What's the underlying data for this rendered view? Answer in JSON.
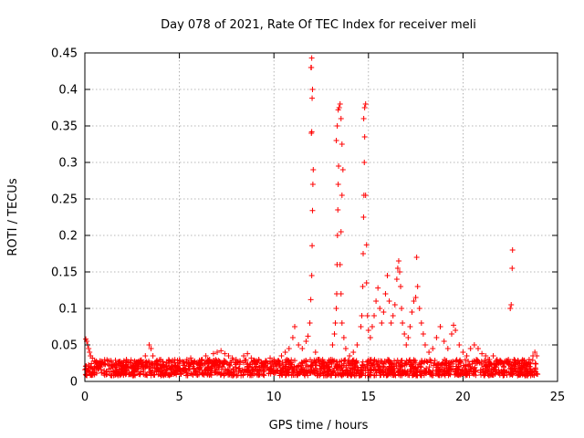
{
  "chart_data": {
    "type": "scatter",
    "title": "Day 078 of 2021, Rate Of TEC Index for receiver meli",
    "xlabel": "GPS time / hours",
    "ylabel": "ROTI / TECUs",
    "xlim": [
      0,
      25
    ],
    "ylim": [
      0,
      0.45
    ],
    "xticks": [
      0,
      5,
      10,
      15,
      20,
      25
    ],
    "xtick_labels": [
      "0",
      "5",
      "10",
      "15",
      "20",
      "25"
    ],
    "yticks": [
      0,
      0.05,
      0.1,
      0.15,
      0.2,
      0.25,
      0.3,
      0.35,
      0.4,
      0.45
    ],
    "ytick_labels": [
      "0",
      "0.05",
      "0.1",
      "0.15",
      "0.2",
      "0.25",
      "0.3",
      "0.35",
      "0.4",
      "0.45"
    ],
    "grid": true,
    "marker": "+",
    "color": "#ff0000",
    "series": [
      {
        "name": "ROTI",
        "points": [
          [
            0.05,
            0.058
          ],
          [
            0.1,
            0.055
          ],
          [
            0.15,
            0.05
          ],
          [
            0.2,
            0.045
          ],
          [
            0.25,
            0.04
          ],
          [
            0.3,
            0.035
          ],
          [
            0.4,
            0.032
          ],
          [
            0.5,
            0.028
          ],
          [
            0.6,
            0.025
          ],
          [
            0.8,
            0.022
          ],
          [
            1.0,
            0.024
          ],
          [
            1.2,
            0.028
          ],
          [
            1.4,
            0.022
          ],
          [
            1.6,
            0.02
          ],
          [
            1.8,
            0.025
          ],
          [
            2.0,
            0.022
          ],
          [
            2.2,
            0.03
          ],
          [
            2.4,
            0.025
          ],
          [
            2.6,
            0.022
          ],
          [
            2.8,
            0.02
          ],
          [
            3.0,
            0.025
          ],
          [
            3.2,
            0.035
          ],
          [
            3.4,
            0.05
          ],
          [
            3.5,
            0.045
          ],
          [
            3.6,
            0.035
          ],
          [
            3.8,
            0.028
          ],
          [
            4.0,
            0.022
          ],
          [
            4.2,
            0.02
          ],
          [
            4.4,
            0.025
          ],
          [
            4.6,
            0.02
          ],
          [
            4.8,
            0.022
          ],
          [
            5.0,
            0.018
          ],
          [
            5.2,
            0.022
          ],
          [
            5.4,
            0.03
          ],
          [
            5.6,
            0.032
          ],
          [
            5.8,
            0.028
          ],
          [
            6.0,
            0.025
          ],
          [
            6.2,
            0.03
          ],
          [
            6.4,
            0.035
          ],
          [
            6.6,
            0.03
          ],
          [
            6.8,
            0.038
          ],
          [
            7.0,
            0.04
          ],
          [
            7.2,
            0.042
          ],
          [
            7.4,
            0.038
          ],
          [
            7.6,
            0.035
          ],
          [
            7.8,
            0.032
          ],
          [
            8.0,
            0.03
          ],
          [
            8.2,
            0.028
          ],
          [
            8.4,
            0.035
          ],
          [
            8.6,
            0.038
          ],
          [
            8.8,
            0.032
          ],
          [
            9.0,
            0.028
          ],
          [
            9.2,
            0.03
          ],
          [
            9.4,
            0.025
          ],
          [
            9.6,
            0.028
          ],
          [
            9.8,
            0.032
          ],
          [
            10.0,
            0.03
          ],
          [
            10.2,
            0.028
          ],
          [
            10.4,
            0.035
          ],
          [
            10.6,
            0.04
          ],
          [
            10.8,
            0.045
          ],
          [
            11.0,
            0.06
          ],
          [
            11.1,
            0.075
          ],
          [
            11.3,
            0.05
          ],
          [
            11.5,
            0.045
          ],
          [
            11.7,
            0.055
          ],
          [
            11.8,
            0.062
          ],
          [
            11.9,
            0.08
          ],
          [
            11.95,
            0.112
          ],
          [
            12.0,
            0.145
          ],
          [
            12.02,
            0.186
          ],
          [
            12.04,
            0.234
          ],
          [
            12.06,
            0.27
          ],
          [
            12.08,
            0.29
          ],
          [
            11.98,
            0.34
          ],
          [
            12.0,
            0.342
          ],
          [
            12.02,
            0.388
          ],
          [
            12.04,
            0.4
          ],
          [
            11.96,
            0.43
          ],
          [
            11.98,
            0.43
          ],
          [
            12.0,
            0.443
          ],
          [
            12.2,
            0.04
          ],
          [
            12.4,
            0.03
          ],
          [
            12.6,
            0.025
          ],
          [
            12.8,
            0.022
          ],
          [
            13.0,
            0.03
          ],
          [
            13.1,
            0.05
          ],
          [
            13.2,
            0.065
          ],
          [
            13.25,
            0.08
          ],
          [
            13.3,
            0.1
          ],
          [
            13.32,
            0.12
          ],
          [
            13.34,
            0.16
          ],
          [
            13.36,
            0.2
          ],
          [
            13.38,
            0.235
          ],
          [
            13.4,
            0.27
          ],
          [
            13.42,
            0.295
          ],
          [
            13.3,
            0.33
          ],
          [
            13.35,
            0.35
          ],
          [
            13.4,
            0.372
          ],
          [
            13.45,
            0.375
          ],
          [
            13.5,
            0.38
          ],
          [
            13.55,
            0.36
          ],
          [
            13.6,
            0.325
          ],
          [
            13.65,
            0.29
          ],
          [
            13.6,
            0.255
          ],
          [
            13.55,
            0.205
          ],
          [
            13.5,
            0.16
          ],
          [
            13.55,
            0.12
          ],
          [
            13.6,
            0.08
          ],
          [
            13.7,
            0.06
          ],
          [
            13.8,
            0.045
          ],
          [
            14.0,
            0.035
          ],
          [
            14.2,
            0.04
          ],
          [
            14.4,
            0.05
          ],
          [
            14.6,
            0.075
          ],
          [
            14.65,
            0.09
          ],
          [
            14.7,
            0.13
          ],
          [
            14.72,
            0.175
          ],
          [
            14.74,
            0.225
          ],
          [
            14.76,
            0.255
          ],
          [
            14.78,
            0.3
          ],
          [
            14.8,
            0.335
          ],
          [
            14.75,
            0.36
          ],
          [
            14.8,
            0.375
          ],
          [
            14.85,
            0.38
          ],
          [
            14.85,
            0.255
          ],
          [
            14.9,
            0.187
          ],
          [
            14.9,
            0.135
          ],
          [
            14.95,
            0.09
          ],
          [
            15.0,
            0.07
          ],
          [
            15.1,
            0.06
          ],
          [
            15.2,
            0.075
          ],
          [
            15.3,
            0.09
          ],
          [
            15.4,
            0.11
          ],
          [
            15.5,
            0.128
          ],
          [
            15.6,
            0.1
          ],
          [
            15.7,
            0.08
          ],
          [
            15.8,
            0.095
          ],
          [
            15.9,
            0.12
          ],
          [
            16.0,
            0.145
          ],
          [
            16.1,
            0.11
          ],
          [
            16.2,
            0.08
          ],
          [
            16.3,
            0.09
          ],
          [
            16.4,
            0.105
          ],
          [
            16.5,
            0.14
          ],
          [
            16.55,
            0.155
          ],
          [
            16.6,
            0.165
          ],
          [
            16.65,
            0.15
          ],
          [
            16.7,
            0.13
          ],
          [
            16.75,
            0.1
          ],
          [
            16.8,
            0.08
          ],
          [
            16.9,
            0.065
          ],
          [
            17.0,
            0.05
          ],
          [
            17.1,
            0.06
          ],
          [
            17.2,
            0.075
          ],
          [
            17.3,
            0.095
          ],
          [
            17.4,
            0.11
          ],
          [
            17.5,
            0.115
          ],
          [
            17.55,
            0.17
          ],
          [
            17.6,
            0.13
          ],
          [
            17.7,
            0.1
          ],
          [
            17.8,
            0.08
          ],
          [
            17.9,
            0.065
          ],
          [
            18.0,
            0.05
          ],
          [
            18.2,
            0.04
          ],
          [
            18.4,
            0.045
          ],
          [
            18.6,
            0.06
          ],
          [
            18.8,
            0.075
          ],
          [
            19.0,
            0.055
          ],
          [
            19.2,
            0.045
          ],
          [
            19.4,
            0.065
          ],
          [
            19.5,
            0.077
          ],
          [
            19.6,
            0.07
          ],
          [
            19.8,
            0.05
          ],
          [
            20.0,
            0.04
          ],
          [
            20.2,
            0.035
          ],
          [
            20.4,
            0.045
          ],
          [
            20.6,
            0.05
          ],
          [
            20.8,
            0.045
          ],
          [
            21.0,
            0.038
          ],
          [
            21.2,
            0.035
          ],
          [
            21.4,
            0.03
          ],
          [
            21.6,
            0.035
          ],
          [
            21.8,
            0.03
          ],
          [
            22.0,
            0.028
          ],
          [
            22.2,
            0.025
          ],
          [
            22.4,
            0.03
          ],
          [
            22.5,
            0.1
          ],
          [
            22.55,
            0.105
          ],
          [
            22.6,
            0.155
          ],
          [
            22.62,
            0.18
          ],
          [
            22.7,
            0.03
          ],
          [
            22.9,
            0.025
          ],
          [
            23.1,
            0.022
          ],
          [
            23.3,
            0.025
          ],
          [
            23.5,
            0.03
          ],
          [
            23.7,
            0.035
          ],
          [
            23.8,
            0.04
          ],
          [
            23.9,
            0.035
          ]
        ],
        "baseline_band": {
          "x_range": [
            0,
            23.95
          ],
          "y_range": [
            0.008,
            0.03
          ],
          "density_per_hour": 70
        }
      }
    ]
  }
}
